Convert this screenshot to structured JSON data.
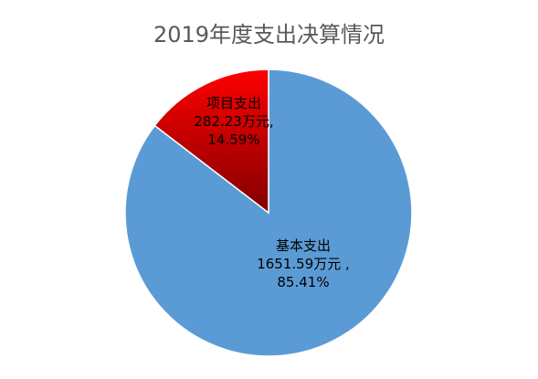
{
  "chart_data": {
    "type": "pie",
    "title": "2019年度支出决算情况",
    "slices": [
      {
        "name": "基本支出",
        "value": 1651.59,
        "unit": "万元",
        "percent": 85.41,
        "percent_label": "85.41%",
        "color": "#5b9bd5"
      },
      {
        "name": "项目支出",
        "value": 282.23,
        "unit": "万元",
        "percent": 14.59,
        "percent_label": "14.59%",
        "color": "#c00000"
      }
    ],
    "legend": "none"
  }
}
